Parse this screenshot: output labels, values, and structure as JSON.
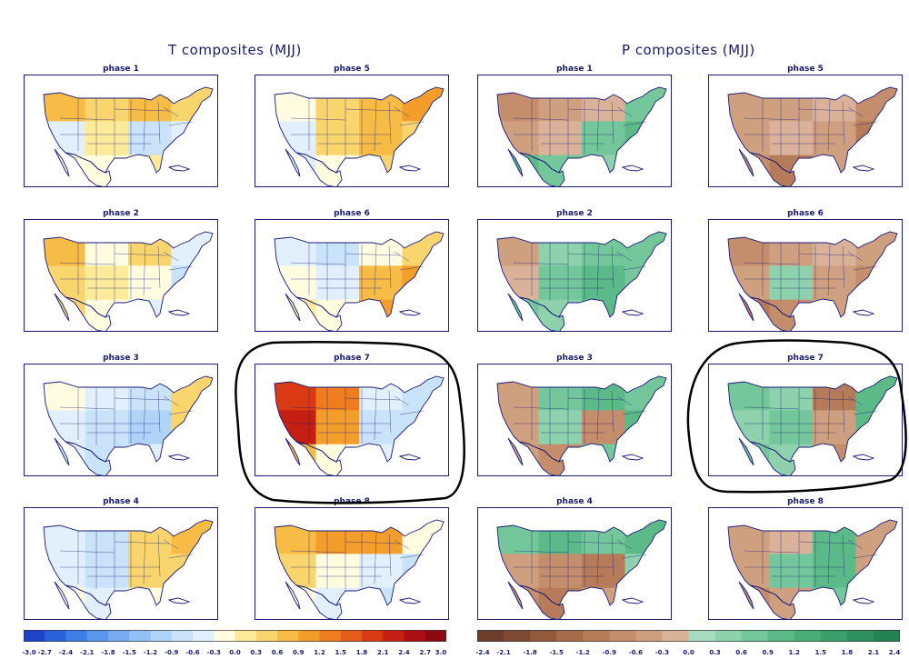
{
  "t_group": {
    "title": "T composites (MJJ)",
    "panels": [
      {
        "label": "phase 1",
        "anom": [
          0.8,
          0.3,
          0.6,
          0.5,
          -0.6,
          0.1,
          -0.9,
          -0.4,
          -0.3,
          -0.3,
          0.0,
          -0.2
        ]
      },
      {
        "label": "phase 5",
        "anom": [
          -0.3,
          0.3,
          0.6,
          0.9,
          -0.6,
          0.3,
          0.6,
          0.3,
          -0.4,
          -0.3,
          0.4,
          0.3
        ]
      },
      {
        "label": "phase 2",
        "anom": [
          0.6,
          -0.3,
          0.3,
          -0.6,
          0.5,
          0.0,
          -0.3,
          -0.9,
          0.3,
          -0.3,
          -0.6,
          -0.6
        ]
      },
      {
        "label": "phase 6",
        "anom": [
          -0.6,
          -0.9,
          -0.3,
          0.3,
          -0.3,
          -0.6,
          0.6,
          0.9,
          0.0,
          -0.3,
          0.9,
          0.6
        ]
      },
      {
        "label": "phase 3",
        "anom": [
          -0.3,
          -0.6,
          -0.9,
          0.3,
          -0.6,
          -0.9,
          -1.2,
          0.3,
          -0.6,
          -0.9,
          -0.6,
          0.3
        ]
      },
      {
        "label": "phase 7",
        "anom": [
          1.8,
          1.2,
          -0.6,
          -0.9,
          2.1,
          0.9,
          -0.9,
          -0.9,
          0.6,
          -0.3,
          -0.6,
          -0.3
        ]
      },
      {
        "label": "phase 4",
        "anom": [
          -0.6,
          -0.9,
          0.3,
          0.6,
          -0.6,
          -0.9,
          0.3,
          0.3,
          -0.3,
          -0.6,
          -0.3,
          -0.3
        ]
      },
      {
        "label": "phase 8",
        "anom": [
          0.6,
          0.9,
          0.9,
          -0.3,
          0.3,
          -0.3,
          -0.6,
          -0.9,
          -0.3,
          -0.6,
          -0.9,
          -0.6
        ]
      }
    ],
    "colorbar": {
      "ticks": [
        "-3.0",
        "-2.7",
        "-2.4",
        "-2.1",
        "-1.8",
        "-1.5",
        "-1.2",
        "-0.9",
        "-0.6",
        "-0.3",
        "0.0",
        "0.3",
        "0.6",
        "0.9",
        "1.2",
        "1.5",
        "1.8",
        "2.1",
        "2.4",
        "2.7",
        "3.0"
      ],
      "colors": [
        "#1f43c8",
        "#2a62dc",
        "#3d7fe6",
        "#5a97ee",
        "#76adf2",
        "#93c1f5",
        "#b0d4f8",
        "#c9e3fa",
        "#e1f0fc",
        "#fffce0",
        "#fdeb9a",
        "#f9d56e",
        "#f6bc45",
        "#f39d2b",
        "#ef7d1f",
        "#e65c18",
        "#d93a14",
        "#c41f12",
        "#ab0f12",
        "#8e0a12"
      ]
    }
  },
  "p_group": {
    "title": "P composites (MJJ)",
    "panels": [
      {
        "label": "phase 1",
        "anom": [
          -0.9,
          -0.6,
          -0.3,
          0.6,
          -0.6,
          -0.3,
          0.6,
          0.9,
          0.9,
          0.6,
          0.3,
          0.6
        ]
      },
      {
        "label": "phase 5",
        "anom": [
          -0.6,
          -0.6,
          -0.3,
          -0.9,
          -0.6,
          -0.3,
          -0.6,
          -1.2,
          -0.9,
          -1.2,
          -0.6,
          -0.3
        ]
      },
      {
        "label": "phase 2",
        "anom": [
          -0.6,
          0.3,
          0.6,
          0.6,
          -0.3,
          0.6,
          0.9,
          0.6,
          0.6,
          0.3,
          0.9,
          0.6
        ]
      },
      {
        "label": "phase 6",
        "anom": [
          -0.9,
          -0.6,
          -0.3,
          -0.6,
          -0.6,
          0.3,
          -0.6,
          -0.9,
          -1.2,
          -0.9,
          -0.6,
          -0.3
        ]
      },
      {
        "label": "phase 3",
        "anom": [
          -0.6,
          0.6,
          0.9,
          0.6,
          -0.6,
          0.3,
          -0.9,
          0.9,
          -0.6,
          -0.9,
          0.6,
          0.6
        ]
      },
      {
        "label": "phase 7",
        "anom": [
          0.6,
          0.3,
          -1.2,
          0.9,
          0.3,
          0.6,
          -0.6,
          0.9,
          0.6,
          0.3,
          -0.9,
          0.6
        ]
      },
      {
        "label": "phase 4",
        "anom": [
          0.6,
          0.9,
          0.6,
          0.9,
          -0.6,
          -0.9,
          -1.2,
          0.3,
          -0.9,
          -1.2,
          -0.6,
          0.6
        ]
      },
      {
        "label": "phase 8",
        "anom": [
          -0.6,
          -0.3,
          0.9,
          -0.6,
          -0.6,
          0.6,
          0.9,
          -0.6,
          -0.9,
          -0.6,
          0.6,
          0.9
        ]
      }
    ],
    "colorbar": {
      "ticks": [
        "-2.4",
        "-2.1",
        "-1.8",
        "-1.5",
        "-1.2",
        "-0.9",
        "-0.6",
        "-0.3",
        "0.0",
        "0.3",
        "0.6",
        "0.9",
        "1.2",
        "1.5",
        "1.8",
        "2.1",
        "2.4"
      ],
      "colors": [
        "#6b3d2a",
        "#7f4a33",
        "#93593d",
        "#a66b4a",
        "#b67c5a",
        "#c48e6c",
        "#cfa080",
        "#dab299",
        "#a8dcc0",
        "#8dd2ad",
        "#73c79a",
        "#5cba88",
        "#49ad78",
        "#3a9f6b",
        "#2e915f",
        "#238355"
      ]
    }
  },
  "colors": {
    "label_text": "#1a1a6a",
    "map_outline": "#1a1a7a",
    "ocean": "#ffffff",
    "highlight_ring": "#000000"
  }
}
